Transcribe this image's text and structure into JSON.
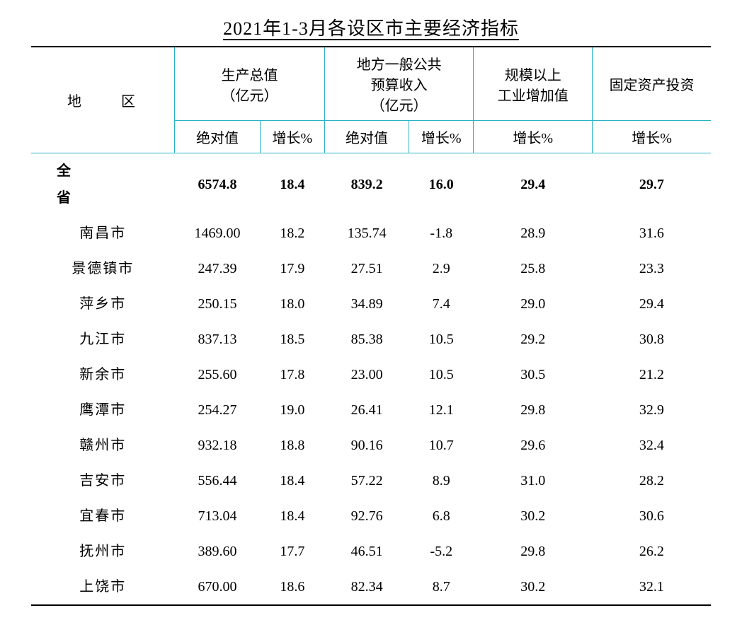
{
  "title": "2021年1-3月各设区市主要经济指标",
  "colors": {
    "header_border": "#27b3c4",
    "outer_border": "#000000",
    "background": "#ffffff",
    "text": "#000000"
  },
  "typography": {
    "title_fontsize_pt": 20,
    "body_fontsize_pt": 15,
    "font_family": "SimSun"
  },
  "table": {
    "type": "table",
    "headers": {
      "region": "地　区",
      "gdp": "生产总值\n（亿元）",
      "gdp_line1": "生产总值",
      "gdp_line2": "（亿元）",
      "budget": "地方一般公共\n预算收入\n（亿元）",
      "budget_line1": "地方一般公共",
      "budget_line2": "预算收入",
      "budget_line3": "（亿元）",
      "industry": "规模以上\n工业增加值",
      "industry_line1": "规模以上",
      "industry_line2": "工业增加值",
      "investment": "固定资产投资",
      "abs": "绝对值",
      "growth": "增长%"
    },
    "rows": [
      {
        "region": "全　省",
        "is_province": true,
        "gdp_abs": "6574.8",
        "gdp_grw": "18.4",
        "bud_abs": "839.2",
        "bud_grw": "16.0",
        "ind_grw": "29.4",
        "inv_grw": "29.7"
      },
      {
        "region": "南昌市",
        "is_province": false,
        "gdp_abs": "1469.00",
        "gdp_grw": "18.2",
        "bud_abs": "135.74",
        "bud_grw": "-1.8",
        "ind_grw": "28.9",
        "inv_grw": "31.6"
      },
      {
        "region": "景德镇市",
        "is_province": false,
        "gdp_abs": "247.39",
        "gdp_grw": "17.9",
        "bud_abs": "27.51",
        "bud_grw": "2.9",
        "ind_grw": "25.8",
        "inv_grw": "23.3"
      },
      {
        "region": "萍乡市",
        "is_province": false,
        "gdp_abs": "250.15",
        "gdp_grw": "18.0",
        "bud_abs": "34.89",
        "bud_grw": "7.4",
        "ind_grw": "29.0",
        "inv_grw": "29.4"
      },
      {
        "region": "九江市",
        "is_province": false,
        "gdp_abs": "837.13",
        "gdp_grw": "18.5",
        "bud_abs": "85.38",
        "bud_grw": "10.5",
        "ind_grw": "29.2",
        "inv_grw": "30.8"
      },
      {
        "region": "新余市",
        "is_province": false,
        "gdp_abs": "255.60",
        "gdp_grw": "17.8",
        "bud_abs": "23.00",
        "bud_grw": "10.5",
        "ind_grw": "30.5",
        "inv_grw": "21.2"
      },
      {
        "region": "鹰潭市",
        "is_province": false,
        "gdp_abs": "254.27",
        "gdp_grw": "19.0",
        "bud_abs": "26.41",
        "bud_grw": "12.1",
        "ind_grw": "29.8",
        "inv_grw": "32.9"
      },
      {
        "region": "赣州市",
        "is_province": false,
        "gdp_abs": "932.18",
        "gdp_grw": "18.8",
        "bud_abs": "90.16",
        "bud_grw": "10.7",
        "ind_grw": "29.6",
        "inv_grw": "32.4"
      },
      {
        "region": "吉安市",
        "is_province": false,
        "gdp_abs": "556.44",
        "gdp_grw": "18.4",
        "bud_abs": "57.22",
        "bud_grw": "8.9",
        "ind_grw": "31.0",
        "inv_grw": "28.2"
      },
      {
        "region": "宜春市",
        "is_province": false,
        "gdp_abs": "713.04",
        "gdp_grw": "18.4",
        "bud_abs": "92.76",
        "bud_grw": "6.8",
        "ind_grw": "30.2",
        "inv_grw": "30.6"
      },
      {
        "region": "抚州市",
        "is_province": false,
        "gdp_abs": "389.60",
        "gdp_grw": "17.7",
        "bud_abs": "46.51",
        "bud_grw": "-5.2",
        "ind_grw": "29.8",
        "inv_grw": "26.2"
      },
      {
        "region": "上饶市",
        "is_province": false,
        "gdp_abs": "670.00",
        "gdp_grw": "18.6",
        "bud_abs": "82.34",
        "bud_grw": "8.7",
        "ind_grw": "30.2",
        "inv_grw": "32.1"
      }
    ]
  }
}
